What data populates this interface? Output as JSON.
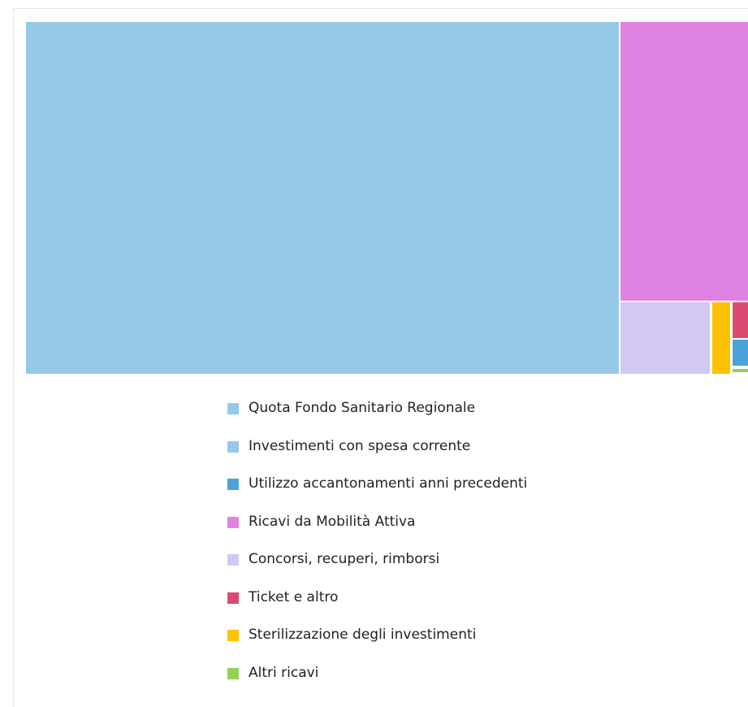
{
  "chart_data": {
    "type": "treemap",
    "title": "",
    "items": [
      {
        "name": "Quota Fondo Sanitario Regionale",
        "value": 82.2,
        "color": "#96c9e8"
      },
      {
        "name": "Investimenti con spesa corrente",
        "value": 0.02,
        "color": "#96c9e8"
      },
      {
        "name": "Utilizzo accantonamenti anni precedenti",
        "value": 0.3,
        "color": "#4ba2d8"
      },
      {
        "name": "Ricavi da Mobilità Attiva",
        "value": 14.1,
        "color": "#df82e2"
      },
      {
        "name": "Concorsi, recuperi, rimborsi",
        "value": 2.5,
        "color": "#d3c8f0"
      },
      {
        "name": "Ticket e altro",
        "value": 0.4,
        "color": "#d94b70"
      },
      {
        "name": "Sterilizzazione degli investimenti",
        "value": 0.4,
        "color": "#fcc200"
      },
      {
        "name": "Altri ricavi",
        "value": 0.05,
        "color": "#93d05a"
      }
    ],
    "legend_position": "bottom-center"
  }
}
